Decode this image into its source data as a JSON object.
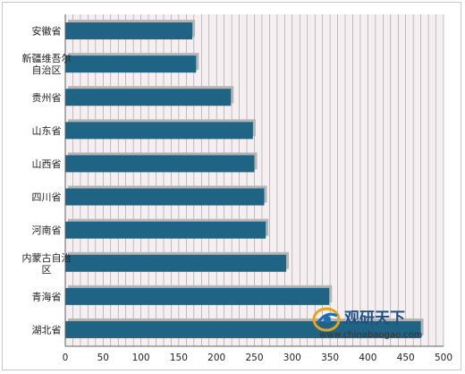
{
  "chart_data": {
    "type": "bar",
    "orientation": "horizontal",
    "categories": [
      "安徽省",
      "新疆维吾尔自治区",
      "贵州省",
      "山东省",
      "山西省",
      "四川省",
      "河南省",
      "内蒙古自治区",
      "青海省",
      "湖北省"
    ],
    "category_lines": [
      [
        "安徽省"
      ],
      [
        "新疆维吾尔",
        "自治区"
      ],
      [
        "贵州省"
      ],
      [
        "山东省"
      ],
      [
        "山西省"
      ],
      [
        "四川省"
      ],
      [
        "河南省"
      ],
      [
        "内蒙古自治",
        "区"
      ],
      [
        "青海省"
      ],
      [
        "湖北省"
      ]
    ],
    "values": [
      168,
      173,
      219,
      248,
      250,
      263,
      265,
      292,
      349,
      470
    ],
    "xlim": [
      0,
      500
    ],
    "xticks": [
      0,
      50,
      100,
      150,
      200,
      250,
      300,
      350,
      400,
      450,
      500
    ],
    "title": "",
    "xlabel": "",
    "ylabel": "",
    "grid": "vertical",
    "legend": "none",
    "colors": {
      "bar": "#1f6484",
      "bar_shadow": "#b4b4b4",
      "plot_background": "#f6eff1",
      "grid": "#9a9a9a",
      "axis": "#606060"
    }
  },
  "watermark": {
    "name": "观研天下",
    "url": "www.chinabaogao.com"
  }
}
